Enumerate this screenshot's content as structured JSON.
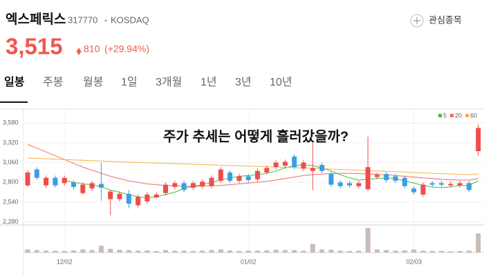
{
  "header": {
    "title": "엑스페릭스",
    "code": "317770",
    "market": "KOSDAQ",
    "price": "3,515",
    "change": "810",
    "change_pct": "(+29.94%)",
    "watch_button": "관심종목"
  },
  "tabs": [
    "일봉",
    "주봉",
    "월봉",
    "1일",
    "3개월",
    "1년",
    "3년",
    "10년"
  ],
  "chart_data": {
    "type": "candlestick",
    "annotation": "주가 추세는 어떻게 흘러갔을까?",
    "categories": [
      null,
      null,
      null,
      null,
      "12/02",
      null,
      null,
      null,
      null,
      null,
      null,
      null,
      null,
      null,
      null,
      null,
      null,
      null,
      null,
      null,
      null,
      null,
      null,
      null,
      "01/02",
      null,
      null,
      null,
      null,
      null,
      null,
      null,
      null,
      null,
      null,
      null,
      null,
      null,
      null,
      null,
      null,
      null,
      "02/03",
      null,
      null,
      null,
      null,
      null,
      null,
      null
    ],
    "open": [
      2760,
      2970,
      2760,
      2860,
      2790,
      2800,
      2660,
      2720,
      2780,
      2580,
      2580,
      2650,
      2500,
      2550,
      2600,
      2660,
      2740,
      2790,
      2730,
      2750,
      2750,
      2820,
      2930,
      2820,
      2880,
      2840,
      2930,
      3000,
      3020,
      3140,
      2980,
      2950,
      3030,
      2910,
      2800,
      2790,
      2750,
      2710,
      2870,
      2910,
      2880,
      2860,
      2720,
      2640,
      2790,
      2790,
      2760,
      2760,
      2790,
      3210
    ],
    "high": [
      2960,
      3000,
      2890,
      2890,
      2890,
      2830,
      2800,
      2820,
      3060,
      2700,
      2680,
      2700,
      2640,
      2670,
      2670,
      2800,
      2820,
      2820,
      2820,
      2840,
      2890,
      3000,
      2960,
      2910,
      2910,
      2980,
      3020,
      3090,
      3100,
      3170,
      3090,
      3320,
      3060,
      2940,
      2830,
      2820,
      2820,
      3400,
      2930,
      2940,
      2910,
      2890,
      2750,
      2800,
      2820,
      2820,
      2810,
      2820,
      2820,
      3560
    ],
    "low": [
      2740,
      2830,
      2730,
      2730,
      2760,
      2710,
      2640,
      2690,
      2560,
      2370,
      2550,
      2460,
      2470,
      2520,
      2610,
      2630,
      2710,
      2670,
      2700,
      2720,
      2720,
      2790,
      2790,
      2790,
      2800,
      2810,
      2900,
      2970,
      2990,
      2970,
      2950,
      2700,
      2920,
      2740,
      2720,
      2730,
      2720,
      2690,
      2840,
      2800,
      2790,
      2720,
      2640,
      2610,
      2740,
      2740,
      2730,
      2730,
      2670,
      3150
    ],
    "close": [
      2930,
      2860,
      2860,
      2760,
      2860,
      2740,
      2770,
      2790,
      2730,
      2680,
      2650,
      2520,
      2610,
      2640,
      2640,
      2770,
      2790,
      2700,
      2790,
      2810,
      2860,
      2970,
      2820,
      2880,
      2830,
      2950,
      2990,
      3060,
      3070,
      3000,
      3060,
      2990,
      2950,
      2770,
      2750,
      2760,
      2790,
      3000,
      2900,
      2830,
      2820,
      2750,
      2670,
      2770,
      2770,
      2770,
      2780,
      2790,
      2700,
      3515
    ],
    "up_color": "#f04c4c",
    "down_color": "#3a9fe0",
    "series": [
      {
        "name": "5",
        "color": "#3cc13c",
        "values": [
          null,
          null,
          null,
          null,
          2830,
          2800,
          2780,
          2770,
          2740,
          2700,
          2670,
          2640,
          2610,
          2600,
          2610,
          2640,
          2670,
          2720,
          2750,
          2770,
          2800,
          2830,
          2860,
          2880,
          2890,
          2900,
          2920,
          2950,
          2990,
          3020,
          3030,
          3020,
          2990,
          2950,
          2900,
          2860,
          2830,
          2840,
          2850,
          2860,
          2850,
          2820,
          2790,
          2760,
          2740,
          2730,
          2740,
          2760,
          2760,
          2820
        ]
      },
      {
        "name": "20",
        "color": "#f06a6a",
        "values": [
          3300,
          3250,
          3200,
          3150,
          3100,
          3050,
          3000,
          2960,
          2920,
          2880,
          2850,
          2820,
          2800,
          2780,
          2770,
          2760,
          2755,
          2750,
          2750,
          2750,
          2755,
          2760,
          2770,
          2780,
          2790,
          2800,
          2815,
          2830,
          2850,
          2870,
          2890,
          2900,
          2910,
          2915,
          2920,
          2920,
          2915,
          2910,
          2905,
          2900,
          2890,
          2880,
          2870,
          2860,
          2850,
          2840,
          2835,
          2830,
          2830,
          2850
        ]
      },
      {
        "name": "60",
        "color": "#f5b041",
        "values": [
          3120,
          3115,
          3110,
          3105,
          3100,
          3095,
          3090,
          3085,
          3080,
          3075,
          3070,
          3066,
          3062,
          3058,
          3054,
          3050,
          3046,
          3042,
          3038,
          3034,
          3030,
          3026,
          3022,
          3018,
          3014,
          3010,
          3006,
          3002,
          2998,
          2994,
          2990,
          2985,
          2980,
          2975,
          2970,
          2965,
          2960,
          2955,
          2950,
          2945,
          2940,
          2935,
          2930,
          2925,
          2920,
          2915,
          2910,
          2905,
          2900,
          2910
        ]
      }
    ],
    "volume": [
      10,
      8,
      6,
      6,
      5,
      7,
      10,
      8,
      22,
      12,
      9,
      8,
      6,
      7,
      5,
      8,
      6,
      6,
      5,
      6,
      8,
      10,
      7,
      5,
      6,
      6,
      7,
      9,
      8,
      8,
      6,
      28,
      10,
      9,
      6,
      5,
      6,
      80,
      10,
      8,
      6,
      7,
      10,
      6,
      5,
      5,
      4,
      5,
      6,
      62
    ],
    "volume_color": "#c9bbb6",
    "volume_ylim": [
      0,
      85
    ],
    "ylim": [
      2250,
      3700
    ],
    "yticks": [
      {
        "value": 2280,
        "label": "2,280"
      },
      {
        "value": 2540,
        "label": "2,540"
      },
      {
        "value": 2800,
        "label": "2,800"
      },
      {
        "value": 3060,
        "label": "3,060"
      },
      {
        "value": 3320,
        "label": "3,320"
      },
      {
        "value": 3580,
        "label": "3,580"
      }
    ],
    "grid": true
  }
}
